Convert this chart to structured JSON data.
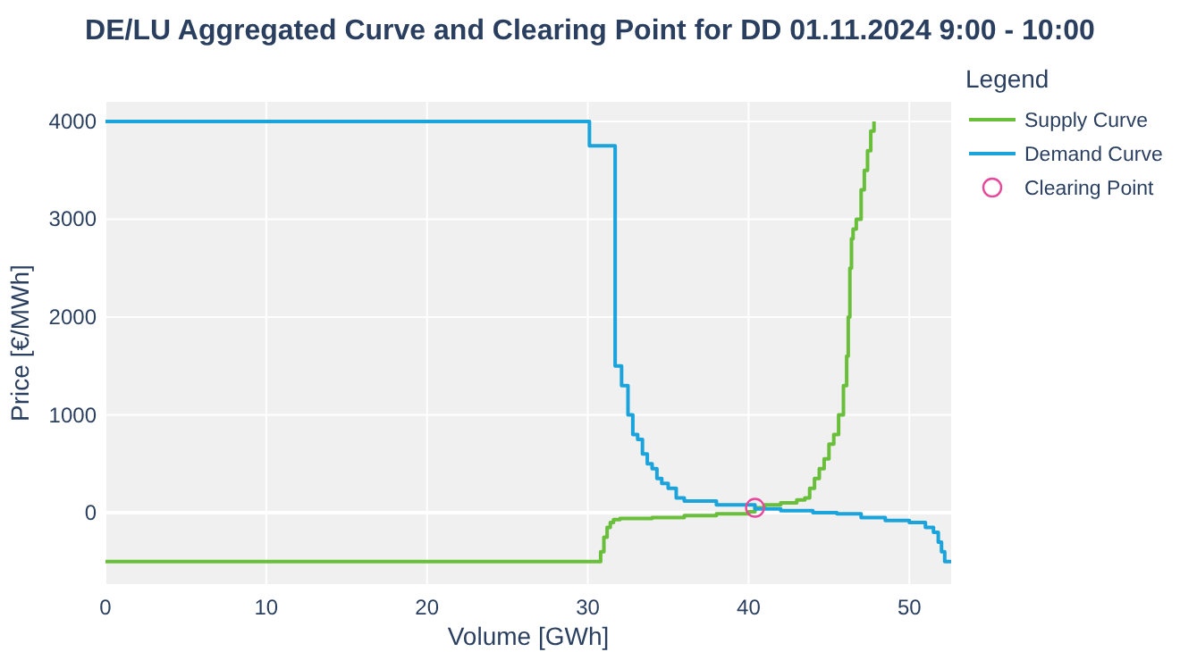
{
  "chart_data": {
    "type": "step",
    "title": "DE/LU Aggregated Curve and Clearing Point for DD 01.11.2024 9:00 - 10:00",
    "xlabel": "Volume [GWh]",
    "ylabel": "Price [€/MWh]",
    "legend_title": "Legend",
    "legend": "top right",
    "grid": true,
    "xlim": [
      0,
      52.6
    ],
    "ylim": [
      -730,
      4200
    ],
    "xticks": [
      0,
      10,
      20,
      30,
      40,
      50
    ],
    "yticks": [
      0,
      1000,
      2000,
      3000,
      4000
    ],
    "series": [
      {
        "name": "Supply Curve",
        "color": "#6abf3a",
        "x": [
          0,
          30.8,
          31.0,
          31.2,
          31.4,
          31.6,
          32,
          34,
          36,
          38,
          40,
          40.4,
          41,
          42,
          43,
          43.5,
          43.8,
          44.1,
          44.4,
          44.7,
          45,
          45.3,
          45.6,
          45.9,
          46.1,
          46.2,
          46.3,
          46.4,
          46.5,
          46.7,
          47,
          47.2,
          47.4,
          47.6,
          47.8
        ],
        "values": [
          -500,
          -400,
          -250,
          -150,
          -100,
          -70,
          -60,
          -50,
          -30,
          -10,
          10,
          50,
          80,
          100,
          130,
          150,
          250,
          350,
          450,
          550,
          700,
          800,
          1000,
          1300,
          1600,
          2000,
          2500,
          2800,
          2900,
          3000,
          3300,
          3500,
          3700,
          3900,
          4000
        ]
      },
      {
        "name": "Demand Curve",
        "color": "#1ba4dc",
        "x": [
          0,
          30.1,
          31.7,
          32.1,
          32.5,
          32.8,
          33.1,
          33.4,
          33.7,
          34.0,
          34.3,
          34.6,
          35.0,
          35.5,
          36,
          38,
          40.4,
          42,
          44,
          45.5,
          47,
          48.5,
          50,
          51,
          51.5,
          51.8,
          52.0,
          52.2,
          52.6
        ],
        "values": [
          4000,
          3750,
          1500,
          1300,
          1000,
          800,
          750,
          600,
          500,
          450,
          350,
          300,
          250,
          150,
          120,
          80,
          40,
          20,
          0,
          -10,
          -50,
          -80,
          -100,
          -150,
          -200,
          -300,
          -400,
          -500,
          -500
        ]
      },
      {
        "name": "Clearing Point",
        "type": "scatter",
        "color": "#e8489a",
        "marker": "circle",
        "x": [
          40.4
        ],
        "values": [
          50
        ]
      }
    ]
  }
}
